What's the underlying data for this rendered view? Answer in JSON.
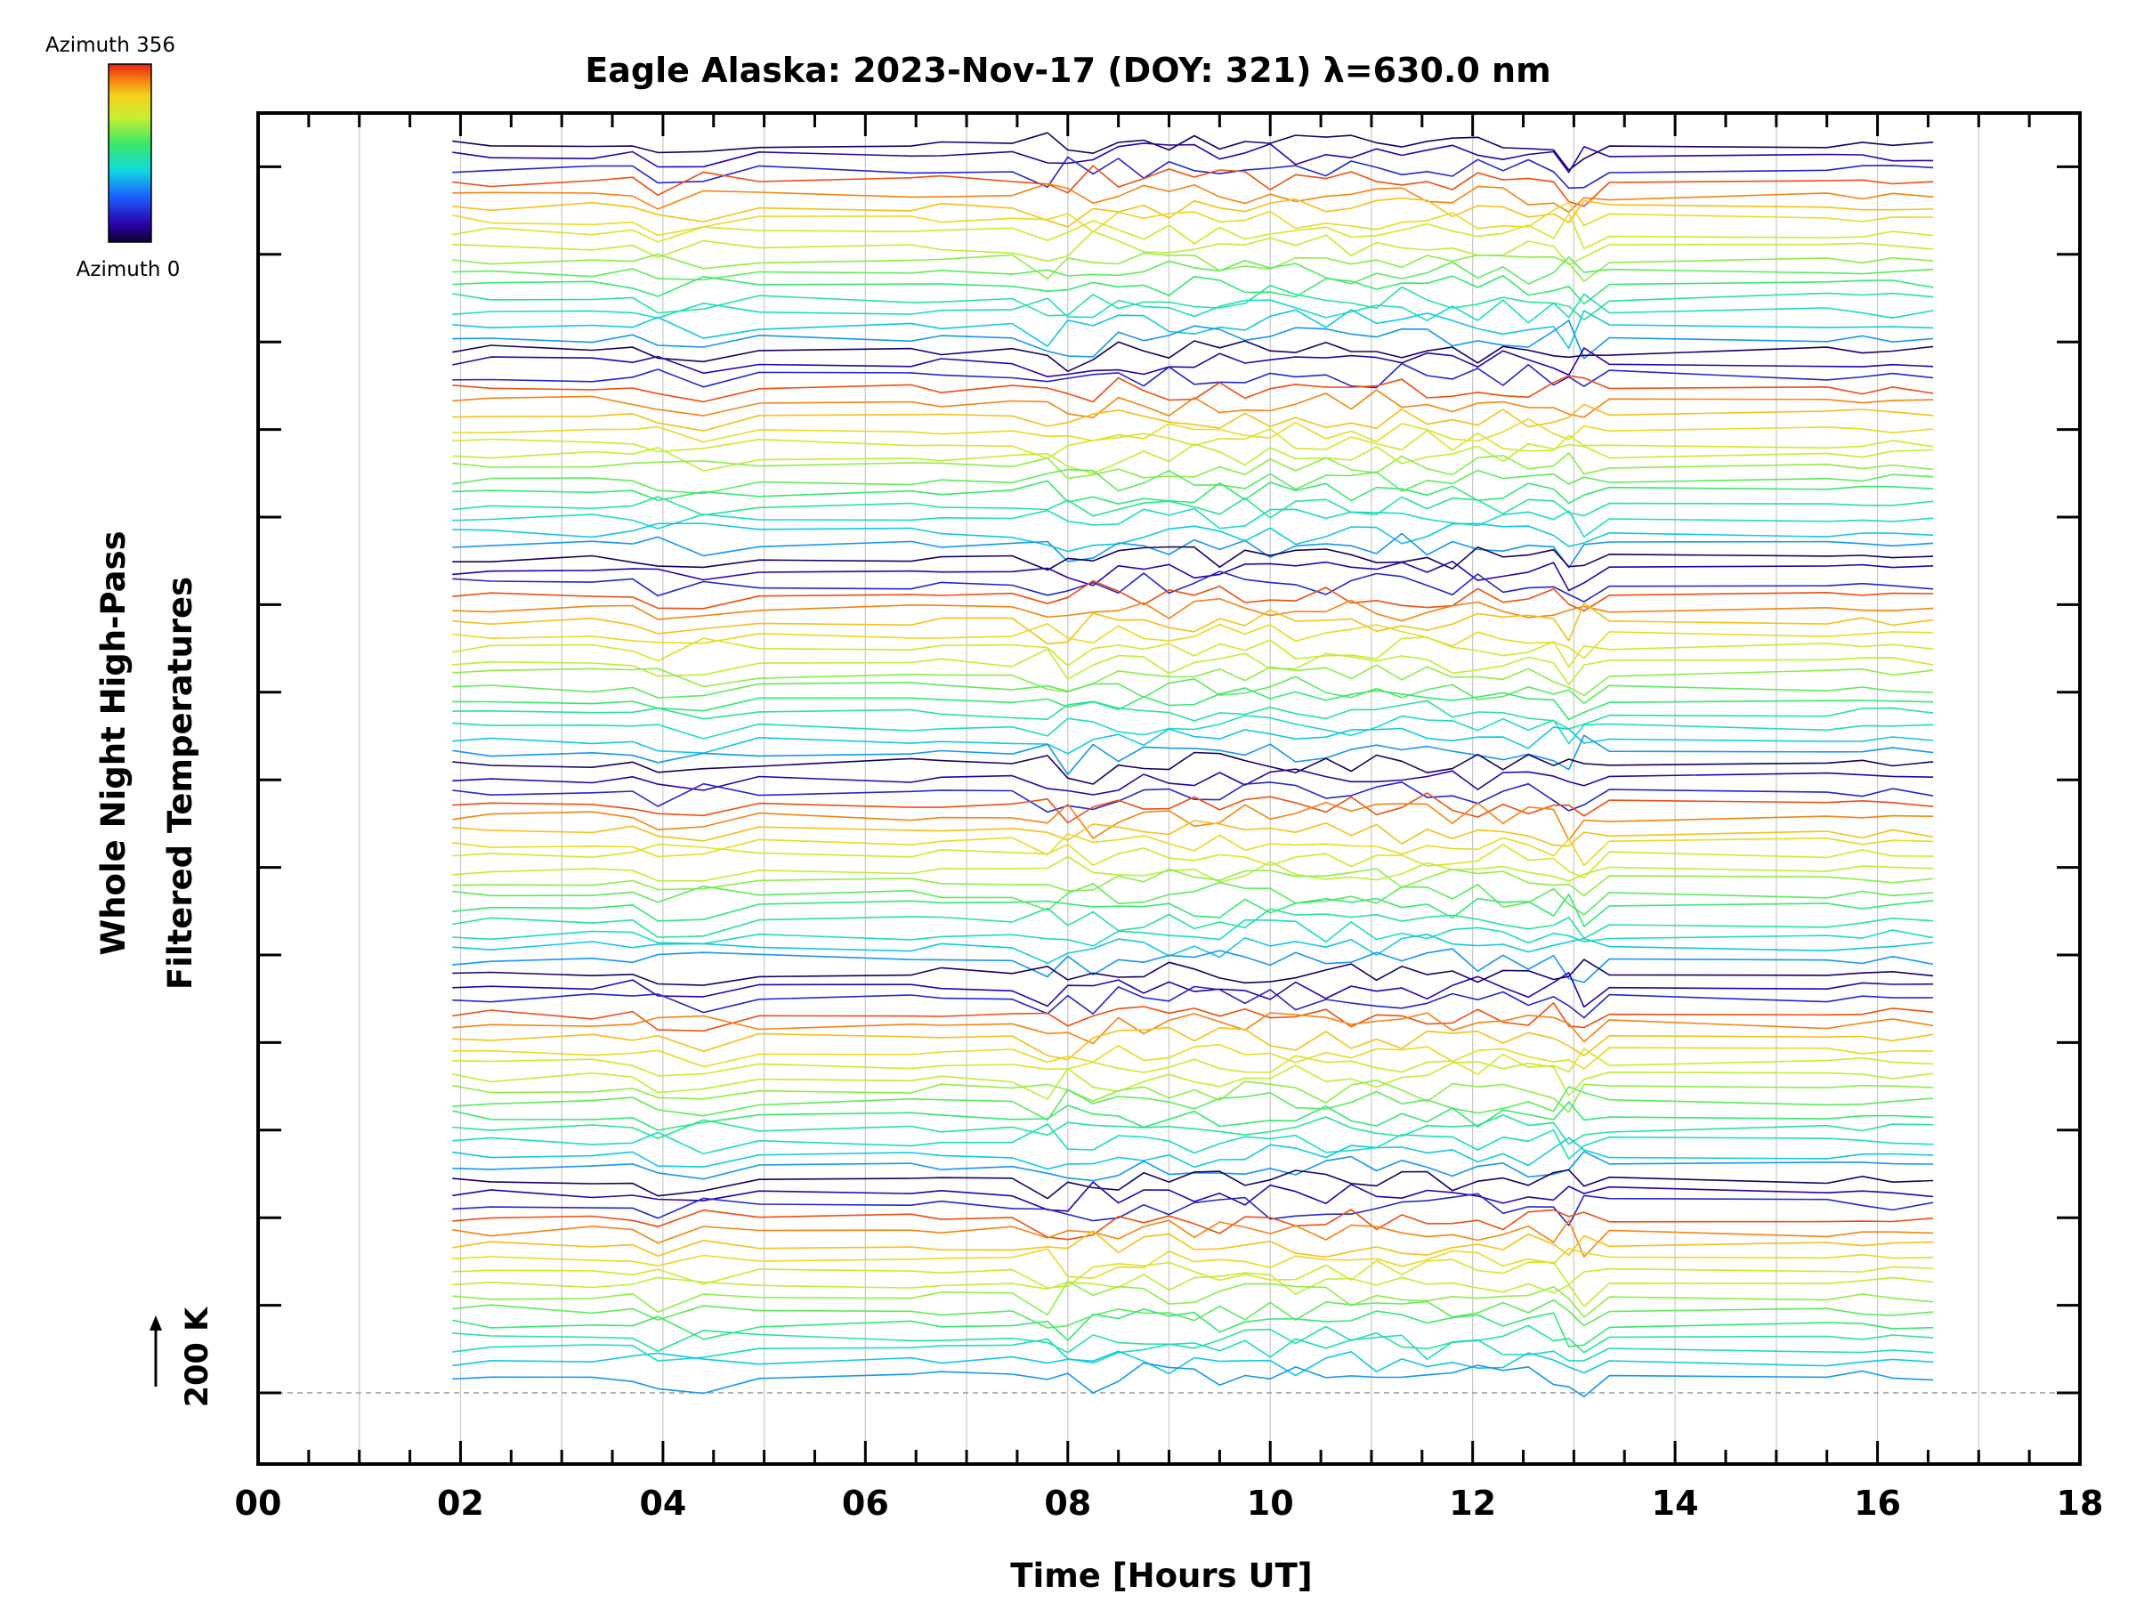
{
  "chart_data": {
    "type": "line",
    "title": "Eagle Alaska: 2023-Nov-17 (DOY: 321) λ=630.0 nm",
    "xlabel": "Time [Hours UT]",
    "ylabel_line1": "Whole Night High-Pass",
    "ylabel_line2": "Filtered Temperatures",
    "scale_label": "200 K",
    "xlim": [
      0,
      18
    ],
    "x_ticks": [
      "00",
      "02",
      "04",
      "06",
      "08",
      "10",
      "12",
      "14",
      "16",
      "18"
    ],
    "x_tick_values": [
      0,
      2,
      4,
      6,
      8,
      10,
      12,
      14,
      16,
      18
    ],
    "colorbar": {
      "top_label": "Azimuth 356",
      "bottom_label": "Azimuth 0",
      "min": 0,
      "max": 356
    },
    "groups": 6,
    "series_per_group": 16,
    "times": [
      1.92,
      2.3,
      3.3,
      3.7,
      3.95,
      4.4,
      4.95,
      6.45,
      6.75,
      7.45,
      7.8,
      8.0,
      8.25,
      8.5,
      8.75,
      9.0,
      9.25,
      9.5,
      9.75,
      10.0,
      10.25,
      10.55,
      10.8,
      11.05,
      11.3,
      11.55,
      11.8,
      12.05,
      12.3,
      12.55,
      12.8,
      12.95,
      13.1,
      13.35,
      15.5,
      15.85,
      16.15,
      16.55
    ],
    "notes": "Stacked high-pass filtered temperature traces, one per azimuth; colored by azimuth from 0 (dark blue/black) to 356 (red). Baseline reference at 200 K (dashed)."
  },
  "colors": {
    "background": "#ffffff",
    "axis": "#000000",
    "grid": "#cccccc",
    "baseline": "#999999"
  }
}
